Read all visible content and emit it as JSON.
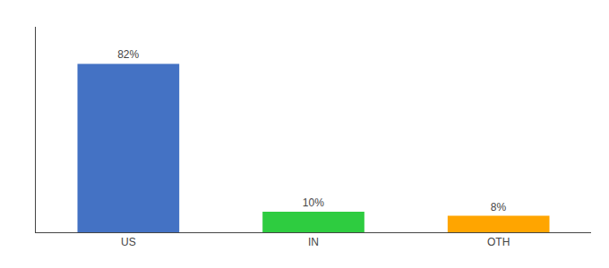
{
  "chart_data": {
    "type": "bar",
    "categories": [
      "US",
      "IN",
      "OTH"
    ],
    "values": [
      82,
      10,
      8
    ],
    "value_labels": [
      "82%",
      "10%",
      "8%"
    ],
    "colors": [
      "#4472C4",
      "#2ECC40",
      "#FFA500"
    ],
    "ylim": [
      0,
      100
    ],
    "data_labels": true,
    "tick_labels": "x",
    "grid": false
  }
}
